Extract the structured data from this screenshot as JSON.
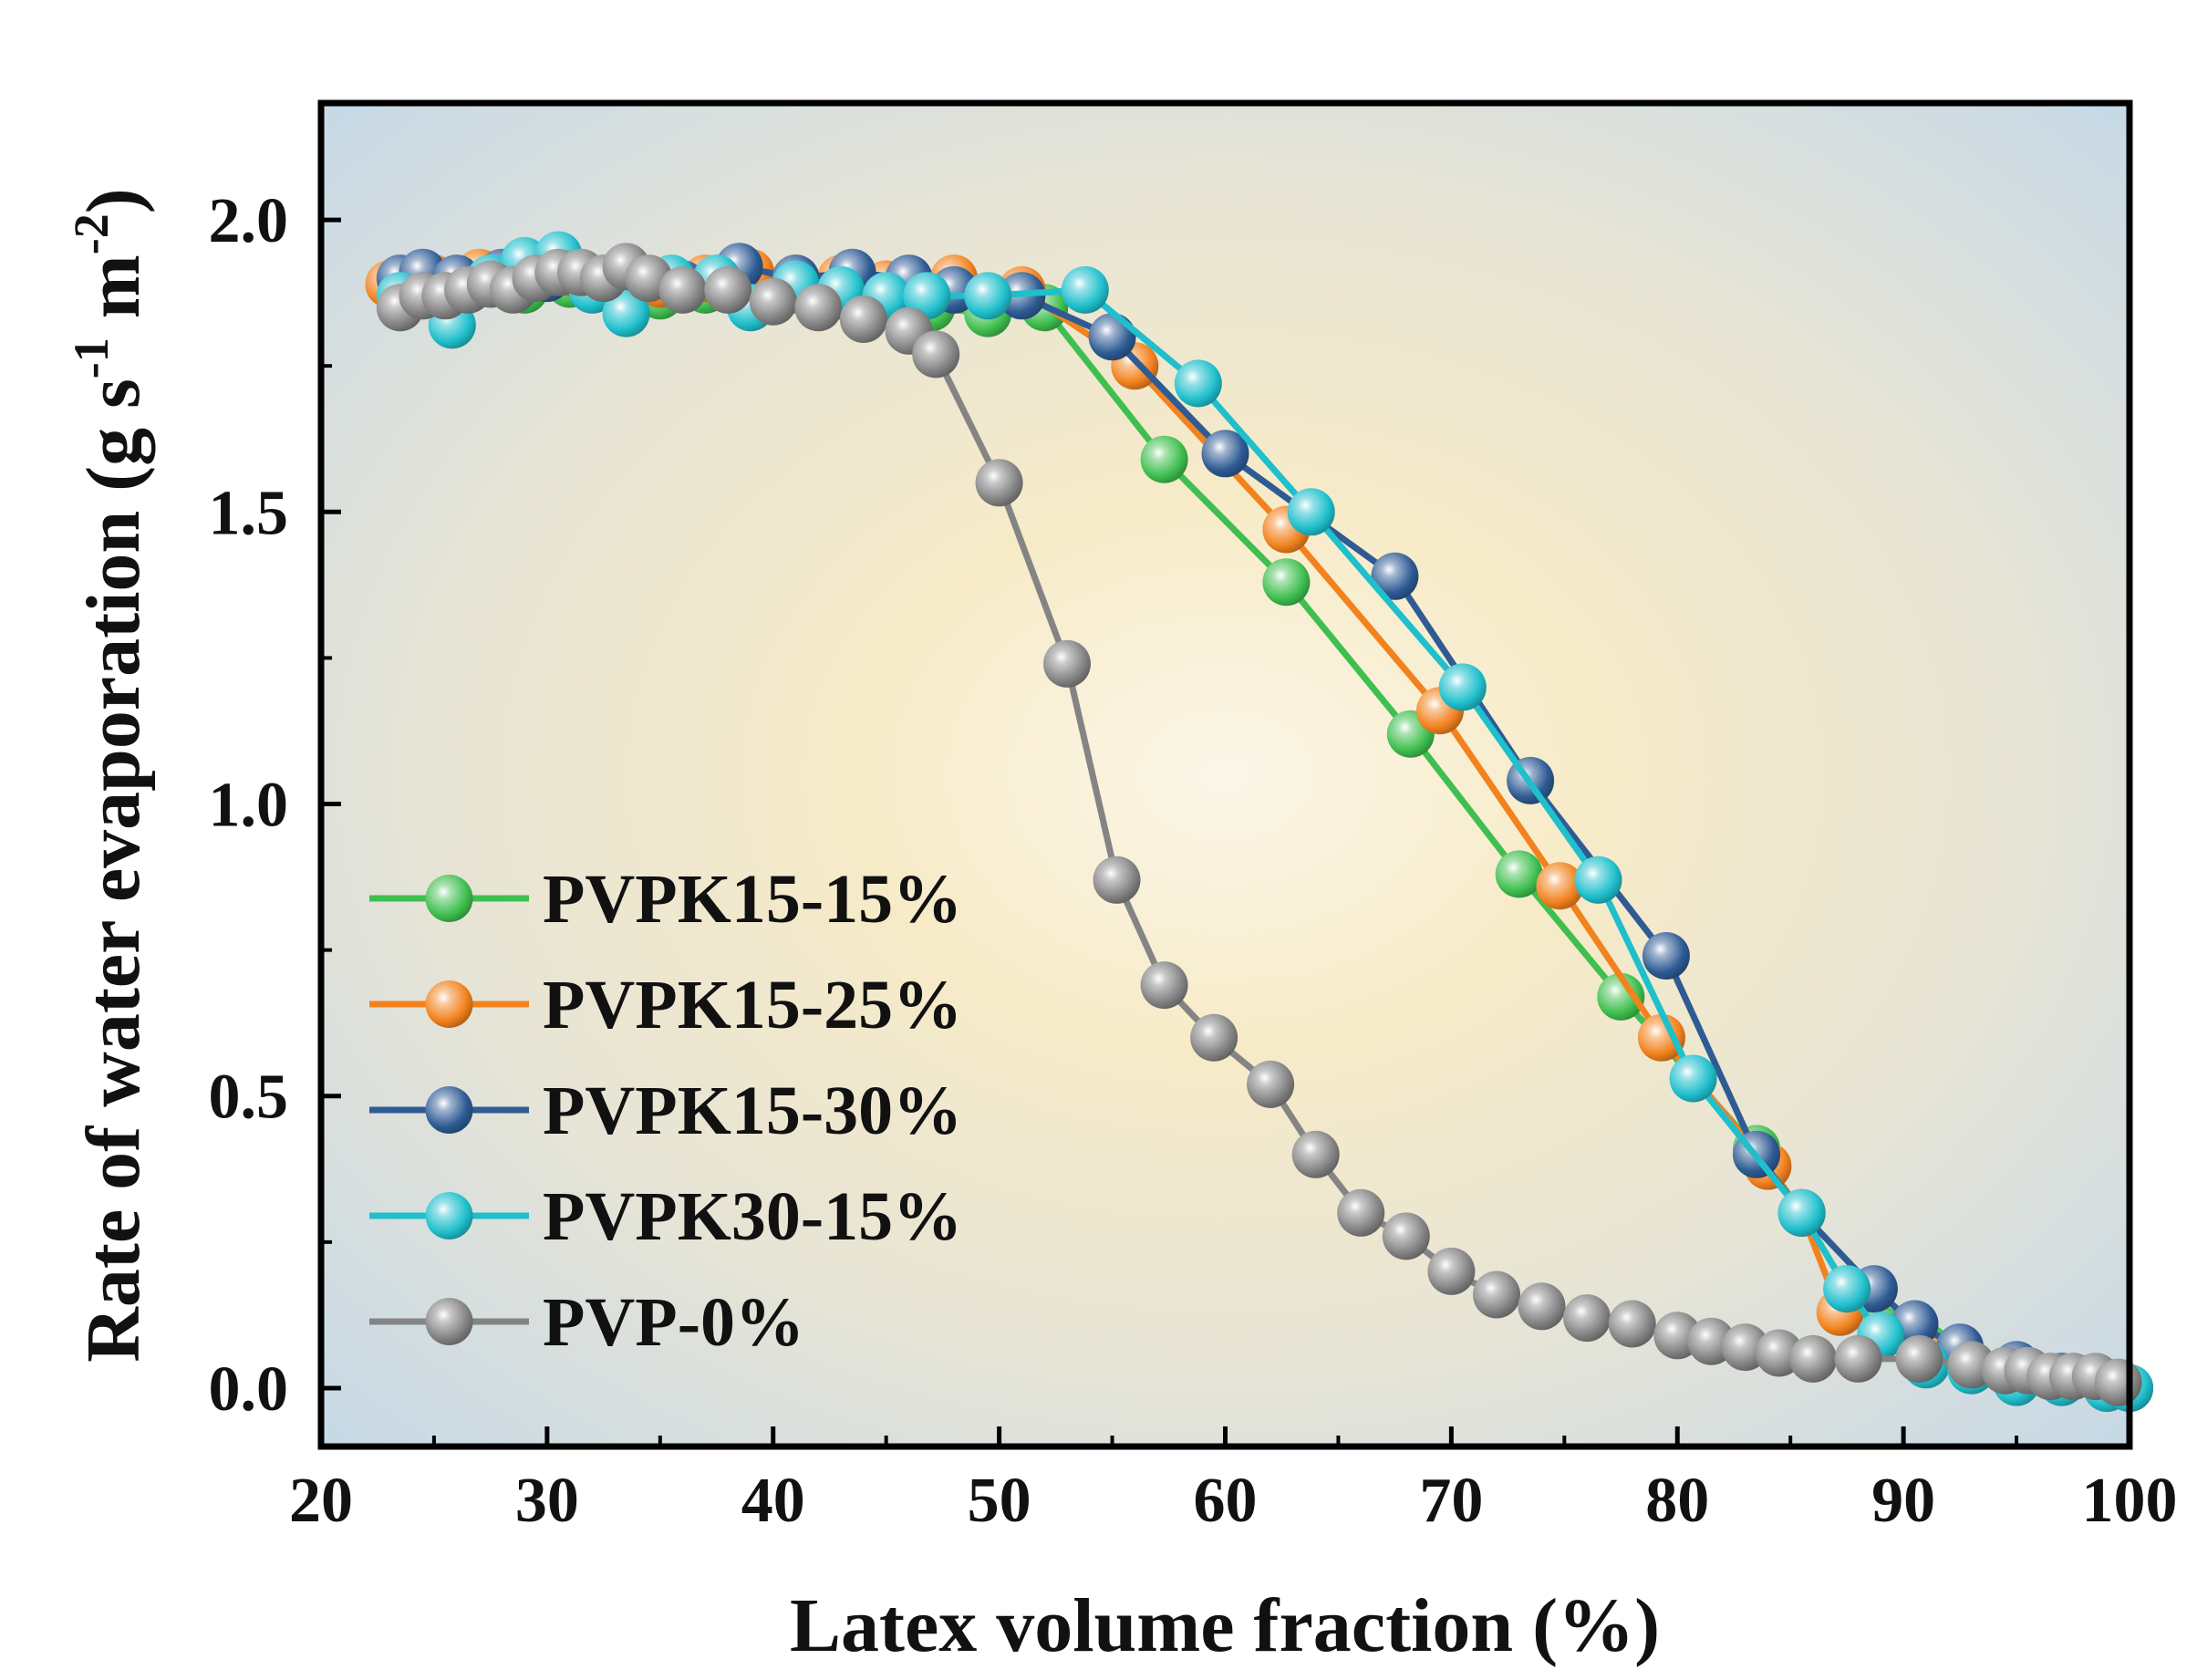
{
  "chart_data": {
    "type": "line",
    "title": "",
    "xlabel": "Latex volume fraction (%)",
    "ylabel_main": "Rate of water evaporation (g s",
    "ylabel_m": " m",
    "ylabel_exp1": "-1",
    "ylabel_exp2": "-2",
    "ylabel_close": ")",
    "xlim": [
      20,
      100
    ],
    "ylim": [
      -0.1,
      2.2
    ],
    "xticks": [
      20,
      30,
      40,
      50,
      60,
      70,
      80,
      90,
      100
    ],
    "yticks": [
      0.0,
      0.5,
      1.0,
      1.5,
      2.0
    ],
    "xtick_labels": [
      "20",
      "30",
      "40",
      "50",
      "60",
      "70",
      "80",
      "90",
      "100"
    ],
    "ytick_labels": [
      "0.0",
      "0.5",
      "1.0",
      "1.5",
      "2.0"
    ],
    "legend_position": "lower-left",
    "series": [
      {
        "name": "PVPK15-15%",
        "color": "#3fbf4f",
        "points": [
          [
            23.5,
            1.88
          ],
          [
            25,
            1.9
          ],
          [
            27,
            1.89
          ],
          [
            29,
            1.88
          ],
          [
            31,
            1.89
          ],
          [
            33,
            1.88
          ],
          [
            35,
            1.87
          ],
          [
            37,
            1.88
          ],
          [
            39,
            1.87
          ],
          [
            41,
            1.88
          ],
          [
            43,
            1.87
          ],
          [
            45,
            1.86
          ],
          [
            47,
            1.85
          ],
          [
            49.5,
            1.84
          ],
          [
            52,
            1.85
          ],
          [
            57.3,
            1.59
          ],
          [
            62.7,
            1.38
          ],
          [
            68.2,
            1.12
          ],
          [
            73,
            0.88
          ],
          [
            77.5,
            0.67
          ],
          [
            83.5,
            0.41
          ],
          [
            85.5,
            0.3
          ],
          [
            87.5,
            0.17
          ],
          [
            89,
            0.1
          ],
          [
            91,
            0.07
          ],
          [
            93,
            0.04
          ],
          [
            95,
            0.03
          ],
          [
            97,
            0.02
          ],
          [
            99,
            0.01
          ],
          [
            100,
            0.0
          ]
        ]
      },
      {
        "name": "PVPK15-25%",
        "color": "#f2821e",
        "points": [
          [
            23,
            1.89
          ],
          [
            25,
            1.9
          ],
          [
            27,
            1.91
          ],
          [
            29,
            1.9
          ],
          [
            31,
            1.91
          ],
          [
            33,
            1.9
          ],
          [
            35,
            1.89
          ],
          [
            37,
            1.9
          ],
          [
            39,
            1.91
          ],
          [
            41,
            1.9
          ],
          [
            43,
            1.9
          ],
          [
            45,
            1.89
          ],
          [
            48,
            1.9
          ],
          [
            51,
            1.88
          ],
          [
            56,
            1.75
          ],
          [
            62.7,
            1.47
          ],
          [
            69.5,
            1.16
          ],
          [
            74.8,
            0.86
          ],
          [
            79.3,
            0.6
          ],
          [
            84,
            0.38
          ],
          [
            85.5,
            0.3
          ],
          [
            87.2,
            0.13
          ],
          [
            89,
            0.09
          ],
          [
            91,
            0.06
          ],
          [
            93,
            0.04
          ],
          [
            95,
            0.02
          ],
          [
            97,
            0.01
          ],
          [
            99,
            0.0
          ],
          [
            100,
            0.0
          ]
        ]
      },
      {
        "name": "PVPK15-30%",
        "color": "#2e5b94",
        "points": [
          [
            23.5,
            1.9
          ],
          [
            24.5,
            1.91
          ],
          [
            26,
            1.9
          ],
          [
            28,
            1.91
          ],
          [
            30,
            1.9
          ],
          [
            32,
            1.89
          ],
          [
            34,
            1.9
          ],
          [
            36,
            1.89
          ],
          [
            38.5,
            1.92
          ],
          [
            41,
            1.9
          ],
          [
            43.5,
            1.91
          ],
          [
            46,
            1.9
          ],
          [
            48,
            1.88
          ],
          [
            51,
            1.87
          ],
          [
            55,
            1.8
          ],
          [
            60,
            1.6
          ],
          [
            67.5,
            1.39
          ],
          [
            73.5,
            1.04
          ],
          [
            79.5,
            0.74
          ],
          [
            83.5,
            0.4
          ],
          [
            85.5,
            0.3
          ],
          [
            88.7,
            0.17
          ],
          [
            90.5,
            0.11
          ],
          [
            92.5,
            0.07
          ],
          [
            95,
            0.04
          ],
          [
            97,
            0.02
          ],
          [
            99,
            0.01
          ],
          [
            100,
            0.0
          ]
        ]
      },
      {
        "name": "PVPK30-15%",
        "color": "#1fbfcc",
        "points": [
          [
            23.5,
            1.87
          ],
          [
            25.8,
            1.82
          ],
          [
            27.5,
            1.9
          ],
          [
            29,
            1.93
          ],
          [
            30.5,
            1.94
          ],
          [
            32,
            1.88
          ],
          [
            33.5,
            1.84
          ],
          [
            35.5,
            1.9
          ],
          [
            37.5,
            1.9
          ],
          [
            39,
            1.85
          ],
          [
            41,
            1.89
          ],
          [
            43,
            1.88
          ],
          [
            45,
            1.87
          ],
          [
            46.8,
            1.87
          ],
          [
            49.5,
            1.87
          ],
          [
            53.8,
            1.88
          ],
          [
            58.8,
            1.72
          ],
          [
            63.8,
            1.5
          ],
          [
            70.5,
            1.2
          ],
          [
            76.5,
            0.87
          ],
          [
            80.7,
            0.53
          ],
          [
            85.5,
            0.3
          ],
          [
            87.5,
            0.17
          ],
          [
            89,
            0.09
          ],
          [
            91,
            0.04
          ],
          [
            93,
            0.03
          ],
          [
            95,
            0.01
          ],
          [
            97,
            0.01
          ],
          [
            99,
            0.0
          ],
          [
            100,
            0.0
          ]
        ]
      },
      {
        "name": "PVP-0%",
        "color": "#848484",
        "points": [
          [
            23.5,
            1.85
          ],
          [
            24.5,
            1.87
          ],
          [
            25.5,
            1.87
          ],
          [
            26.5,
            1.88
          ],
          [
            27.5,
            1.89
          ],
          [
            28.5,
            1.88
          ],
          [
            29.5,
            1.9
          ],
          [
            30.5,
            1.91
          ],
          [
            31.5,
            1.91
          ],
          [
            32.5,
            1.9
          ],
          [
            33.5,
            1.92
          ],
          [
            34.5,
            1.9
          ],
          [
            36,
            1.88
          ],
          [
            38,
            1.88
          ],
          [
            40,
            1.86
          ],
          [
            42,
            1.85
          ],
          [
            44,
            1.83
          ],
          [
            46,
            1.81
          ],
          [
            47.2,
            1.77
          ],
          [
            50,
            1.55
          ],
          [
            53,
            1.24
          ],
          [
            55.2,
            0.87
          ],
          [
            57.3,
            0.69
          ],
          [
            59.5,
            0.6
          ],
          [
            62,
            0.52
          ],
          [
            64,
            0.4
          ],
          [
            66,
            0.3
          ],
          [
            68,
            0.26
          ],
          [
            70,
            0.2
          ],
          [
            72,
            0.16
          ],
          [
            74,
            0.14
          ],
          [
            76,
            0.12
          ],
          [
            78,
            0.11
          ],
          [
            80,
            0.09
          ],
          [
            81.5,
            0.08
          ],
          [
            83,
            0.07
          ],
          [
            84.5,
            0.06
          ],
          [
            86,
            0.05
          ],
          [
            88,
            0.05
          ],
          [
            90.7,
            0.05
          ],
          [
            93,
            0.04
          ],
          [
            94.5,
            0.03
          ],
          [
            95.5,
            0.03
          ],
          [
            96.5,
            0.02
          ],
          [
            97.5,
            0.02
          ],
          [
            98.5,
            0.02
          ],
          [
            99.5,
            0.01
          ]
        ]
      }
    ]
  }
}
